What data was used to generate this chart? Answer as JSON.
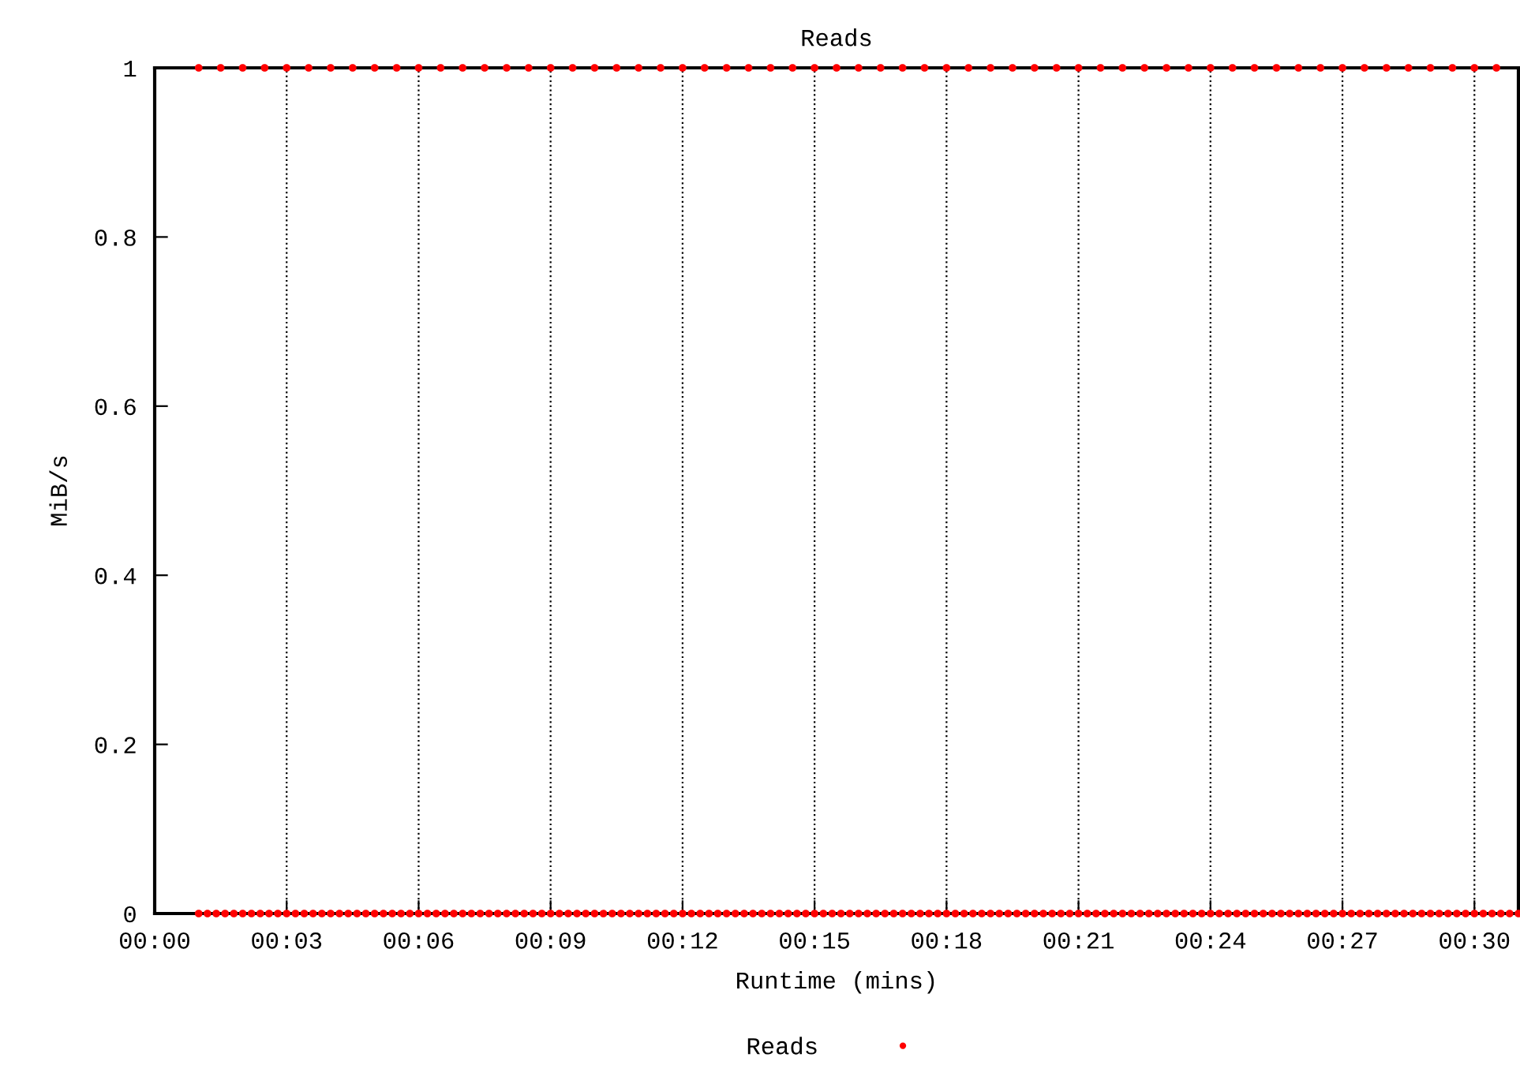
{
  "chart_data": {
    "type": "scatter",
    "title": "Reads",
    "xlabel": "Runtime (mins)",
    "ylabel": "MiB/s",
    "xlim": [
      0,
      31
    ],
    "ylim": [
      0,
      1
    ],
    "xticks": [
      {
        "value": 0,
        "label": "00:00"
      },
      {
        "value": 3,
        "label": "00:03"
      },
      {
        "value": 6,
        "label": "00:06"
      },
      {
        "value": 9,
        "label": "00:09"
      },
      {
        "value": 12,
        "label": "00:12"
      },
      {
        "value": 15,
        "label": "00:15"
      },
      {
        "value": 18,
        "label": "00:18"
      },
      {
        "value": 21,
        "label": "00:21"
      },
      {
        "value": 24,
        "label": "00:24"
      },
      {
        "value": 27,
        "label": "00:27"
      },
      {
        "value": 30,
        "label": "00:30"
      }
    ],
    "yticks": [
      0,
      0.2,
      0.4,
      0.6,
      0.8,
      1
    ],
    "grid": "x",
    "legend": "bottom",
    "marker": "circle",
    "series": [
      {
        "name": "Reads",
        "color": "#ff0000",
        "x": [
          1,
          1.5,
          2,
          2.5,
          3,
          3.5,
          4,
          4.5,
          5,
          5.5,
          6,
          6.5,
          7,
          7.5,
          8,
          8.5,
          9,
          9.5,
          10,
          10.5,
          11,
          11.5,
          12,
          12.5,
          13,
          13.5,
          14,
          14.5,
          15,
          15.5,
          16,
          16.5,
          17,
          17.5,
          18,
          18.5,
          19,
          19.5,
          20,
          20.5,
          21,
          21.5,
          22,
          22.5,
          23,
          23.5,
          24,
          24.5,
          25,
          25.5,
          26,
          26.5,
          27,
          27.5,
          28,
          28.5,
          29,
          29.5,
          30,
          30.5
        ],
        "values": [
          1,
          1,
          1,
          1,
          1,
          1,
          1,
          1,
          1,
          1,
          1,
          1,
          1,
          1,
          1,
          1,
          1,
          1,
          1,
          1,
          1,
          1,
          1,
          1,
          1,
          1,
          1,
          1,
          1,
          1,
          1,
          1,
          1,
          1,
          1,
          1,
          1,
          1,
          1,
          1,
          1,
          1,
          1,
          1,
          1,
          1,
          1,
          1,
          1,
          1,
          1,
          1,
          1,
          1,
          1,
          1,
          1,
          1,
          1,
          1
        ]
      },
      {
        "color": "#ff0000",
        "x": [
          1,
          1.2,
          1.4,
          1.6,
          1.8,
          2,
          2.2,
          2.4,
          2.6,
          2.8,
          3,
          3.2,
          3.4,
          3.6,
          3.8,
          4,
          4.2,
          4.4,
          4.6,
          4.8,
          5,
          5.2,
          5.4,
          5.6,
          5.8,
          6,
          6.2,
          6.4,
          6.6,
          6.8,
          7,
          7.2,
          7.4,
          7.6,
          7.8,
          8,
          8.2,
          8.4,
          8.6,
          8.8,
          9,
          9.2,
          9.4,
          9.6,
          9.8,
          10,
          10.2,
          10.4,
          10.6,
          10.8,
          11,
          11.2,
          11.4,
          11.6,
          11.8,
          12,
          12.2,
          12.4,
          12.6,
          12.8,
          13,
          13.2,
          13.4,
          13.6,
          13.8,
          14,
          14.2,
          14.4,
          14.6,
          14.8,
          15,
          15.2,
          15.4,
          15.6,
          15.8,
          16,
          16.2,
          16.4,
          16.6,
          16.8,
          17,
          17.2,
          17.4,
          17.6,
          17.8,
          18,
          18.2,
          18.4,
          18.6,
          18.8,
          19,
          19.2,
          19.4,
          19.6,
          19.8,
          20,
          20.2,
          20.4,
          20.6,
          20.8,
          21,
          21.2,
          21.4,
          21.6,
          21.8,
          22,
          22.2,
          22.4,
          22.6,
          22.8,
          23,
          23.2,
          23.4,
          23.6,
          23.8,
          24,
          24.2,
          24.4,
          24.6,
          24.8,
          25,
          25.2,
          25.4,
          25.6,
          25.8,
          26,
          26.2,
          26.4,
          26.6,
          26.8,
          27,
          27.2,
          27.4,
          27.6,
          27.8,
          28,
          28.2,
          28.4,
          28.6,
          28.8,
          29,
          29.2,
          29.4,
          29.6,
          29.8,
          30,
          30.2,
          30.4,
          30.6,
          30.8,
          31
        ],
        "values": [
          0,
          0,
          0,
          0,
          0,
          0,
          0,
          0,
          0,
          0,
          0,
          0,
          0,
          0,
          0,
          0,
          0,
          0,
          0,
          0,
          0,
          0,
          0,
          0,
          0,
          0,
          0,
          0,
          0,
          0,
          0,
          0,
          0,
          0,
          0,
          0,
          0,
          0,
          0,
          0,
          0,
          0,
          0,
          0,
          0,
          0,
          0,
          0,
          0,
          0,
          0,
          0,
          0,
          0,
          0,
          0,
          0,
          0,
          0,
          0,
          0,
          0,
          0,
          0,
          0,
          0,
          0,
          0,
          0,
          0,
          0,
          0,
          0,
          0,
          0,
          0,
          0,
          0,
          0,
          0,
          0,
          0,
          0,
          0,
          0,
          0,
          0,
          0,
          0,
          0,
          0,
          0,
          0,
          0,
          0,
          0,
          0,
          0,
          0,
          0,
          0,
          0,
          0,
          0,
          0,
          0,
          0,
          0,
          0,
          0,
          0,
          0,
          0,
          0,
          0,
          0,
          0,
          0,
          0,
          0,
          0,
          0,
          0,
          0,
          0,
          0,
          0,
          0,
          0,
          0,
          0,
          0,
          0,
          0,
          0,
          0,
          0,
          0,
          0,
          0,
          0,
          0,
          0,
          0,
          0,
          0,
          0,
          0,
          0,
          0,
          0
        ]
      }
    ]
  }
}
